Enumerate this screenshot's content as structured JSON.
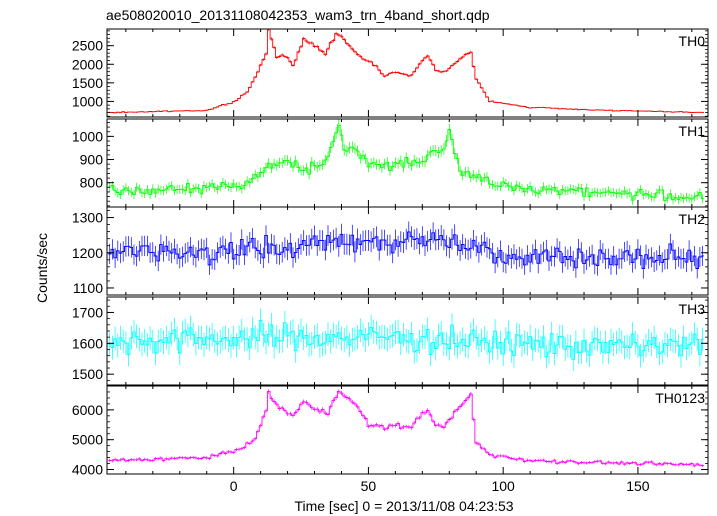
{
  "title": "ae508020010_20131108042353_wam3_trn_4band_short.qdp",
  "chart_data": {
    "type": "line",
    "title": "ae508020010_20131108042353_wam3_trn_4band_short.qdp",
    "xlabel": "Time [sec] 0 = 2013/11/08 04:23:53",
    "ylabel": "Counts/sec",
    "xlim": [
      -47,
      176
    ],
    "x_ticks": [
      0,
      50,
      100,
      150
    ],
    "x_step": 1,
    "grid": false,
    "panels": [
      {
        "name": "TH0",
        "color": "#ff0000",
        "ylim": [
          580,
          2950
        ],
        "y_ticks": [
          1000,
          1500,
          2000,
          2500
        ],
        "keypoints": [
          [
            -45,
            700
          ],
          [
            -10,
            760
          ],
          [
            0,
            980
          ],
          [
            5,
            1250
          ],
          [
            9,
            1800
          ],
          [
            12,
            2250
          ],
          [
            13,
            2950
          ],
          [
            16,
            2200
          ],
          [
            19,
            2250
          ],
          [
            22,
            2000
          ],
          [
            26,
            2650
          ],
          [
            30,
            2500
          ],
          [
            34,
            2300
          ],
          [
            38,
            2800
          ],
          [
            40,
            2750
          ],
          [
            43,
            2500
          ],
          [
            48,
            2150
          ],
          [
            52,
            2000
          ],
          [
            56,
            1700
          ],
          [
            60,
            1800
          ],
          [
            66,
            1700
          ],
          [
            70,
            2100
          ],
          [
            72,
            2200
          ],
          [
            75,
            1850
          ],
          [
            78,
            1800
          ],
          [
            82,
            2000
          ],
          [
            85,
            2200
          ],
          [
            88,
            2350
          ],
          [
            90,
            1600
          ],
          [
            95,
            1000
          ],
          [
            110,
            840
          ],
          [
            130,
            780
          ],
          [
            150,
            740
          ],
          [
            175,
            700
          ]
        ],
        "noise": 0.022
      },
      {
        "name": "TH1",
        "color": "#00ff00",
        "ylim": [
          695,
          1075
        ],
        "y_ticks": [
          800,
          900,
          1000
        ],
        "keypoints": [
          [
            -45,
            760
          ],
          [
            -10,
            775
          ],
          [
            5,
            800
          ],
          [
            12,
            860
          ],
          [
            20,
            890
          ],
          [
            28,
            860
          ],
          [
            35,
            890
          ],
          [
            39,
            1050
          ],
          [
            41,
            960
          ],
          [
            45,
            940
          ],
          [
            50,
            880
          ],
          [
            60,
            880
          ],
          [
            70,
            900
          ],
          [
            78,
            960
          ],
          [
            80,
            1010
          ],
          [
            84,
            860
          ],
          [
            90,
            820
          ],
          [
            100,
            780
          ],
          [
            120,
            770
          ],
          [
            150,
            750
          ],
          [
            175,
            735
          ]
        ],
        "noise": 0.032
      },
      {
        "name": "TH2",
        "color": "#0000ff",
        "ylim": [
          1080,
          1330
        ],
        "y_ticks": [
          1100,
          1200,
          1300
        ],
        "keypoints": [
          [
            -45,
            1200
          ],
          [
            20,
            1210
          ],
          [
            40,
            1240
          ],
          [
            60,
            1230
          ],
          [
            80,
            1240
          ],
          [
            100,
            1195
          ],
          [
            140,
            1185
          ],
          [
            175,
            1185
          ]
        ],
        "noise": 0.03
      },
      {
        "name": "TH3",
        "color": "#00ffff",
        "ylim": [
          1465,
          1750
        ],
        "y_ticks": [
          1500,
          1600,
          1700
        ],
        "keypoints": [
          [
            -45,
            1610
          ],
          [
            20,
            1620
          ],
          [
            60,
            1620
          ],
          [
            100,
            1600
          ],
          [
            140,
            1590
          ],
          [
            175,
            1595
          ]
        ],
        "noise": 0.03
      },
      {
        "name": "TH0123",
        "color": "#ff00ff",
        "ylim": [
          3850,
          6800
        ],
        "y_ticks": [
          4000,
          5000,
          6000
        ],
        "keypoints": [
          [
            -45,
            4300
          ],
          [
            -10,
            4400
          ],
          [
            0,
            4600
          ],
          [
            8,
            5000
          ],
          [
            12,
            6000
          ],
          [
            13,
            6500
          ],
          [
            18,
            6000
          ],
          [
            22,
            5800
          ],
          [
            26,
            6300
          ],
          [
            30,
            6000
          ],
          [
            35,
            5900
          ],
          [
            39,
            6700
          ],
          [
            42,
            6400
          ],
          [
            46,
            6100
          ],
          [
            50,
            5500
          ],
          [
            56,
            5400
          ],
          [
            60,
            5500
          ],
          [
            66,
            5400
          ],
          [
            70,
            5900
          ],
          [
            72,
            6000
          ],
          [
            75,
            5500
          ],
          [
            78,
            5400
          ],
          [
            82,
            5900
          ],
          [
            85,
            6200
          ],
          [
            88,
            6500
          ],
          [
            90,
            4900
          ],
          [
            95,
            4500
          ],
          [
            110,
            4300
          ],
          [
            150,
            4200
          ],
          [
            175,
            4150
          ]
        ],
        "noise": 0.015
      }
    ]
  }
}
